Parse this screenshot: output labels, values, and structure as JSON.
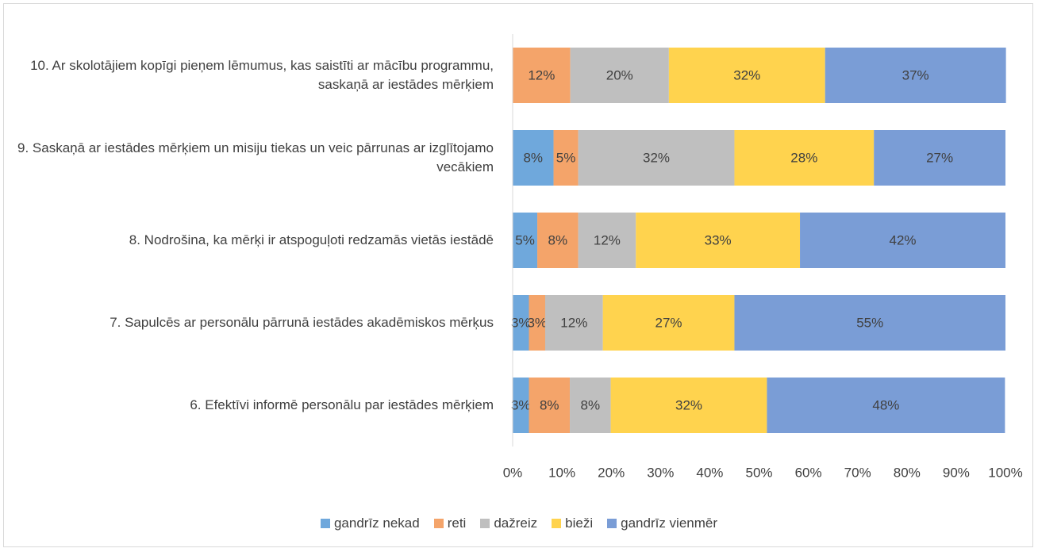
{
  "chart_data": {
    "type": "stacked_barh",
    "categories": [
      "10. Ar skolotājiem kopīgi pieņem lēmumus, kas saistīti ar mācību programmu, saskaņā ar iestādes mērķiem",
      "9. Saskaņā ar iestādes mērķiem un misiju tiekas un veic pārrunas ar izglītojamo vecākiem",
      "8. Nodrošina, ka mērķi ir atspoguļoti redzamās vietās iestādē",
      "7. Sapulcēs ar personālu pārrunā iestādes akadēmiskos mērķus",
      "6. Efektīvi informē personālu par iestādes mērķiem"
    ],
    "series": [
      {
        "name": "gandrīz nekad",
        "color": "#6fa8dc",
        "values": [
          0,
          8.3,
          5,
          3.3,
          3.3
        ],
        "value_labels": [
          null,
          "8%",
          "5%",
          "3%",
          "3%"
        ]
      },
      {
        "name": "reti",
        "color": "#f4a46a",
        "values": [
          11.7,
          5,
          8.3,
          3.3,
          8.3
        ],
        "value_labels": [
          "12%",
          "5%",
          "8%",
          "3%",
          "8%"
        ]
      },
      {
        "name": "dažreiz",
        "color": "#bfbfbf",
        "values": [
          20,
          31.7,
          11.7,
          11.7,
          8.3
        ],
        "value_labels": [
          "20%",
          "32%",
          "12%",
          "12%",
          "8%"
        ]
      },
      {
        "name": "bieži",
        "color": "#ffd34e",
        "values": [
          31.7,
          28.3,
          33.3,
          26.7,
          31.7
        ],
        "value_labels": [
          "32%",
          "28%",
          "33%",
          "27%",
          "32%"
        ]
      },
      {
        "name": "gandrīz vienmēr",
        "color": "#7a9dd6",
        "values": [
          36.7,
          26.7,
          41.7,
          55,
          48.3
        ],
        "value_labels": [
          "37%",
          "27%",
          "42%",
          "55%",
          "48%"
        ]
      }
    ],
    "xlim": [
      0,
      100
    ],
    "xticks": [
      {
        "value": 0,
        "label": "0%"
      },
      {
        "value": 10,
        "label": "10%"
      },
      {
        "value": 20,
        "label": "20%"
      },
      {
        "value": 30,
        "label": "30%"
      },
      {
        "value": 40,
        "label": "40%"
      },
      {
        "value": 50,
        "label": "50%"
      },
      {
        "value": 60,
        "label": "60%"
      },
      {
        "value": 70,
        "label": "70%"
      },
      {
        "value": 80,
        "label": "80%"
      },
      {
        "value": 90,
        "label": "90%"
      },
      {
        "value": 100,
        "label": "100%"
      }
    ],
    "grid": false,
    "legend": "bottom"
  }
}
